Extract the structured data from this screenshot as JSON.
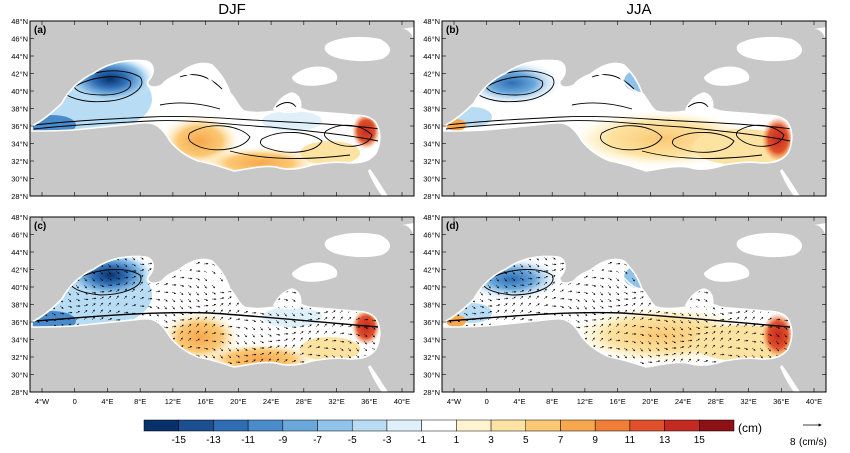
{
  "columns": [
    "DJF",
    "JJA"
  ],
  "panels": [
    {
      "label": "(a)",
      "season": "DJF",
      "field": "streamlines"
    },
    {
      "label": "(b)",
      "season": "JJA",
      "field": "streamlines"
    },
    {
      "label": "(c)",
      "season": "DJF",
      "field": "vectors"
    },
    {
      "label": "(d)",
      "season": "JJA",
      "field": "vectors"
    }
  ],
  "lat_ticks": [
    "48°N",
    "46°N",
    "44°N",
    "42°N",
    "40°N",
    "38°N",
    "36°N",
    "34°N",
    "32°N",
    "30°N",
    "28°N"
  ],
  "lon_ticks": [
    "4°W",
    "0",
    "4°E",
    "8°E",
    "12°E",
    "16°E",
    "20°E",
    "24°E",
    "28°E",
    "32°E",
    "36°E",
    "40°E"
  ],
  "colorbar": {
    "labels": [
      "-15",
      "-13",
      "-11",
      "-9",
      "-7",
      "-5",
      "-3",
      "-1",
      "1",
      "3",
      "5",
      "7",
      "9",
      "11",
      "13",
      "15"
    ],
    "colors": [
      "#08306b",
      "#1b4f91",
      "#2e6db4",
      "#4a8bcb",
      "#6aa8dc",
      "#8fc3ea",
      "#b7dcf4",
      "#dff0fa",
      "#ffffff",
      "#fff4cf",
      "#fde3a1",
      "#fbc874",
      "#f7a84e",
      "#f07e36",
      "#e0502a",
      "#c42a22",
      "#8c1014"
    ],
    "unit": "(cm)"
  },
  "vector_reference": {
    "magnitude": "8",
    "unit": "(cm/s)"
  },
  "style": {
    "land": "#c8c8c8",
    "sea_outside": "#ffffff",
    "frame": "#000000"
  }
}
